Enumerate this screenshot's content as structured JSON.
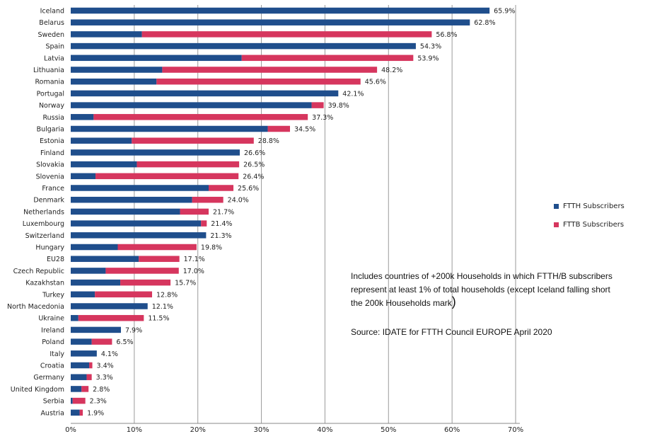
{
  "chart_data": {
    "type": "bar",
    "orientation": "horizontal",
    "stacked": true,
    "categories": [
      "Iceland",
      "Belarus",
      "Sweden",
      "Spain",
      "Latvia",
      "Lithuania",
      "Romania",
      "Portugal",
      "Norway",
      "Russia",
      "Bulgaria",
      "Estonia",
      "Finland",
      "Slovakia",
      "Slovenia",
      "France",
      "Denmark",
      "Netherlands",
      "Luxembourg",
      "Switzerland",
      "Hungary",
      "EU28",
      "Czech Republic",
      "Kazakhstan",
      "Turkey",
      "North Macedonia",
      "Ukraine",
      "Ireland",
      "Poland",
      "Italy",
      "Croatia",
      "Germany",
      "United Kingdom",
      "Serbia",
      "Austria"
    ],
    "series": [
      {
        "name": "FTTH Subscribers",
        "color": "#1f4e8c",
        "values": [
          65.9,
          62.8,
          11.2,
          54.3,
          26.9,
          14.4,
          13.5,
          42.1,
          37.9,
          3.6,
          31.0,
          9.6,
          26.6,
          10.4,
          3.9,
          21.7,
          19.1,
          17.2,
          20.5,
          21.3,
          7.4,
          10.7,
          5.5,
          7.8,
          3.8,
          12.1,
          1.2,
          7.9,
          3.3,
          4.1,
          2.9,
          2.5,
          1.7,
          0.3,
          1.4
        ]
      },
      {
        "name": "FTTB Subscribers",
        "color": "#d6365e",
        "values": [
          0.0,
          0.0,
          45.6,
          0.0,
          27.0,
          33.8,
          32.1,
          0.0,
          1.9,
          33.7,
          3.5,
          19.2,
          0.0,
          16.1,
          22.5,
          3.9,
          4.9,
          4.5,
          0.9,
          0.0,
          12.4,
          6.4,
          11.5,
          7.9,
          9.0,
          0.0,
          10.3,
          0.0,
          3.2,
          0.0,
          0.5,
          0.8,
          1.1,
          2.0,
          0.5
        ]
      }
    ],
    "data_labels": [
      "65.9%",
      "62.8%",
      "56.8%",
      "54.3%",
      "53.9%",
      "48.2%",
      "45.6%",
      "42.1%",
      "39.8%",
      "37.3%",
      "34.5%",
      "28.8%",
      "26.6%",
      "26.5%",
      "26.4%",
      "25.6%",
      "24.0%",
      "21.7%",
      "21.4%",
      "21.3%",
      "19.8%",
      "17.1%",
      "17.0%",
      "15.7%",
      "12.8%",
      "12.1%",
      "11.5%",
      "7.9%",
      "6.5%",
      "4.1%",
      "3.4%",
      "3.3%",
      "2.8%",
      "2.3%",
      "1.9%"
    ],
    "xlim": [
      0,
      70
    ],
    "x_ticks": [
      "0%",
      "10%",
      "20%",
      "30%",
      "40%",
      "50%",
      "60%",
      "70%"
    ],
    "grid": true,
    "legend_position": "right"
  },
  "annotations": {
    "note_line1": "Includes countries of +200k Households in which FTTH/B  subscribers",
    "note_line2": "represent at least 1% of total households  (except Iceland falling short",
    "note_line3": "the 200k Households mark",
    "note_paren": ")",
    "source": "Source: IDATE for FTTH Council EUROPE  April 2020"
  }
}
